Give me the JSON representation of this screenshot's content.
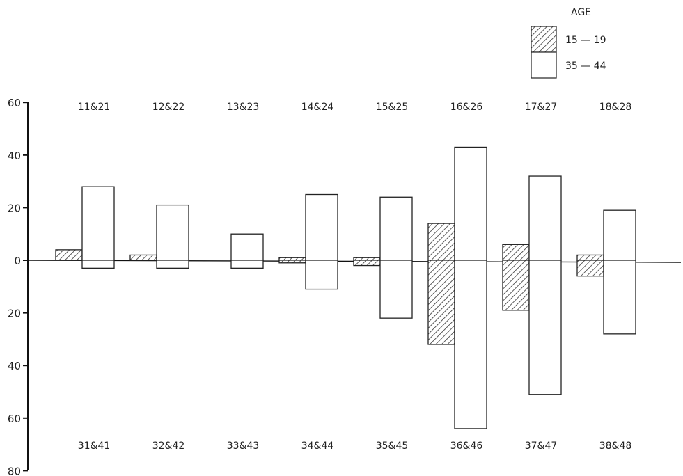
{
  "chart_data": {
    "type": "bar",
    "legend": {
      "title": "AGE",
      "placement": "top-right",
      "entries": [
        {
          "label": "15 — 19",
          "pattern": "hatched"
        },
        {
          "label": "35 — 44",
          "pattern": "open"
        }
      ]
    },
    "y_ticks": [
      {
        "label": "60",
        "value": 60
      },
      {
        "label": "40",
        "value": 40
      },
      {
        "label": "20",
        "value": 20
      },
      {
        "label": "0",
        "value": 0
      },
      {
        "label": "20",
        "value": -20
      },
      {
        "label": "40",
        "value": -40
      },
      {
        "label": "60",
        "value": -60
      },
      {
        "label": "80",
        "value": -80
      }
    ],
    "ylim": [
      -80,
      60
    ],
    "grid": false,
    "upper_categories": [
      "11&21",
      "12&22",
      "13&23",
      "14&24",
      "15&25",
      "16&26",
      "17&27",
      "18&28"
    ],
    "lower_categories": [
      "31&41",
      "32&42",
      "33&43",
      "34&44",
      "35&45",
      "36&46",
      "37&47",
      "38&48"
    ],
    "series": [
      {
        "name": "15 — 19",
        "upper_values": [
          4,
          2,
          0,
          1,
          1,
          14,
          6,
          2
        ],
        "lower_values": [
          0,
          0,
          0,
          -1,
          -2,
          -32,
          -19,
          -6
        ]
      },
      {
        "name": "35 — 44",
        "upper_values": [
          28,
          21,
          10,
          25,
          24,
          43,
          32,
          19
        ],
        "lower_values": [
          -3,
          -3,
          -3,
          -11,
          -22,
          -64,
          -51,
          -28
        ]
      }
    ]
  }
}
